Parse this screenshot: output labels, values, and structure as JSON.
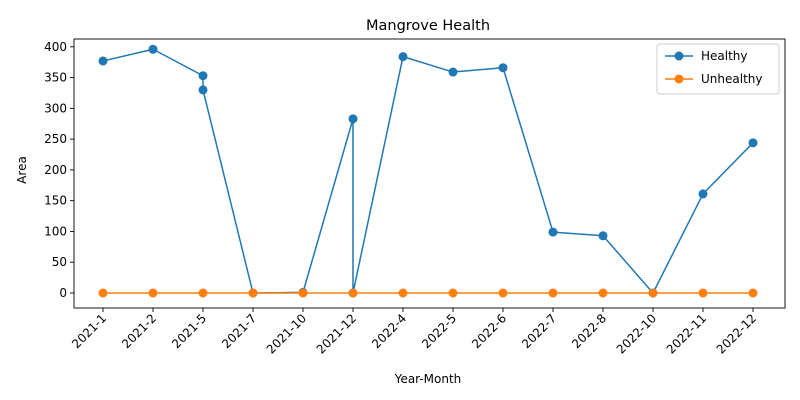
{
  "chart_data": {
    "type": "line",
    "title": "Mangrove Health",
    "xlabel": "Year-Month",
    "ylabel": "Area",
    "categories": [
      "2021-1",
      "2021-2",
      "2021-5",
      "2021-7",
      "2021-10",
      "2021-12",
      "2022-4",
      "2022-5",
      "2022-6",
      "2022-7",
      "2022-8",
      "2022-10",
      "2022-11",
      "2022-12"
    ],
    "yticks": [
      0,
      50,
      100,
      150,
      200,
      250,
      300,
      350,
      400
    ],
    "ylim": [
      -20,
      417
    ],
    "series": [
      {
        "name": "Healthy",
        "color": "#1f77b4",
        "points": [
          {
            "x": "2021-1",
            "y": 377
          },
          {
            "x": "2021-2",
            "y": 396
          },
          {
            "x": "2021-5",
            "y": 353
          },
          {
            "x": "2021-5",
            "y": 330
          },
          {
            "x": "2021-7",
            "y": 0
          },
          {
            "x": "2021-10",
            "y": 1
          },
          {
            "x": "2021-12",
            "y": 283
          },
          {
            "x": "2021-12",
            "y": 0
          },
          {
            "x": "2022-4",
            "y": 384
          },
          {
            "x": "2022-5",
            "y": 359
          },
          {
            "x": "2022-6",
            "y": 366
          },
          {
            "x": "2022-7",
            "y": 99
          },
          {
            "x": "2022-8",
            "y": 93
          },
          {
            "x": "2022-10",
            "y": 0
          },
          {
            "x": "2022-11",
            "y": 161
          },
          {
            "x": "2022-12",
            "y": 244
          }
        ]
      },
      {
        "name": "Unhealthy",
        "color": "#ff7f0e",
        "points": [
          {
            "x": "2021-1",
            "y": 0
          },
          {
            "x": "2021-2",
            "y": 0
          },
          {
            "x": "2021-5",
            "y": 0
          },
          {
            "x": "2021-7",
            "y": 0
          },
          {
            "x": "2021-10",
            "y": 0
          },
          {
            "x": "2021-12",
            "y": 0
          },
          {
            "x": "2022-4",
            "y": 0
          },
          {
            "x": "2022-5",
            "y": 0
          },
          {
            "x": "2022-6",
            "y": 0
          },
          {
            "x": "2022-7",
            "y": 0
          },
          {
            "x": "2022-8",
            "y": 0
          },
          {
            "x": "2022-10",
            "y": 0
          },
          {
            "x": "2022-11",
            "y": 0
          },
          {
            "x": "2022-12",
            "y": 0
          }
        ]
      }
    ],
    "grid": false,
    "legend_position": "top-right"
  }
}
